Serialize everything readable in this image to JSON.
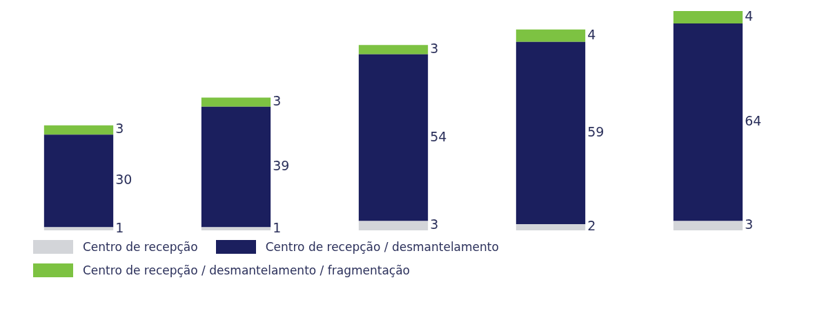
{
  "chart_data": {
    "type": "bar",
    "stacked": true,
    "categories": [
      null,
      null,
      null,
      null,
      null
    ],
    "series": [
      {
        "name": "Centro de recepção",
        "color": "#d3d5d9",
        "values": [
          1,
          1,
          3,
          2,
          3
        ]
      },
      {
        "name": "Centro de recepção / desmantelamento",
        "color": "#1b1f5e",
        "values": [
          30,
          39,
          54,
          59,
          64
        ]
      },
      {
        "name": "Centro de recepção / desmantelamento / fragmentação",
        "color": "#7dc242",
        "values": [
          3,
          3,
          3,
          4,
          4
        ]
      }
    ],
    "data_labels": true,
    "legend": "bottom",
    "grid": false
  }
}
